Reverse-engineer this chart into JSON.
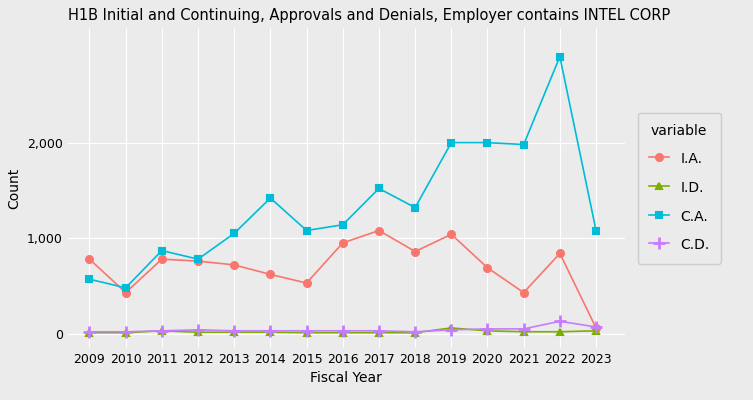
{
  "title": "H1B Initial and Continuing, Approvals and Denials, Employer contains INTEL CORP",
  "xlabel": "Fiscal Year",
  "ylabel": "Count",
  "years": [
    2009,
    2010,
    2011,
    2012,
    2013,
    2014,
    2015,
    2016,
    2017,
    2018,
    2019,
    2020,
    2021,
    2022,
    2023
  ],
  "IA": [
    780,
    430,
    780,
    760,
    720,
    620,
    530,
    950,
    1080,
    860,
    1040,
    690,
    430,
    840,
    60
  ],
  "ID": [
    10,
    10,
    30,
    15,
    15,
    15,
    10,
    10,
    10,
    10,
    60,
    30,
    20,
    20,
    30
  ],
  "CA": [
    570,
    480,
    870,
    780,
    1050,
    1420,
    1080,
    1140,
    1520,
    1320,
    2000,
    2000,
    1980,
    2900,
    1080
  ],
  "CD": [
    20,
    20,
    30,
    40,
    30,
    30,
    30,
    30,
    30,
    20,
    40,
    50,
    50,
    130,
    70
  ],
  "colors": {
    "IA": "#F8766D",
    "ID": "#7CAE00",
    "CA": "#00BCD8",
    "CD": "#C77CFF"
  },
  "markers": {
    "IA": "o",
    "ID": "^",
    "CA": "s",
    "CD": "+"
  },
  "legend_labels": {
    "IA": "I.A.",
    "ID": "I.D.",
    "CA": "C.A.",
    "CD": "C.D."
  },
  "bg_color": "#EBEBEB",
  "plot_bg": "#EBEBEB",
  "grid_color": "white",
  "ylim": [
    -150,
    3200
  ],
  "yticks": [
    0,
    1000,
    2000
  ],
  "title_fontsize": 10.5,
  "axis_fontsize": 10,
  "tick_fontsize": 9,
  "legend_title_fontsize": 10,
  "legend_fontsize": 10
}
